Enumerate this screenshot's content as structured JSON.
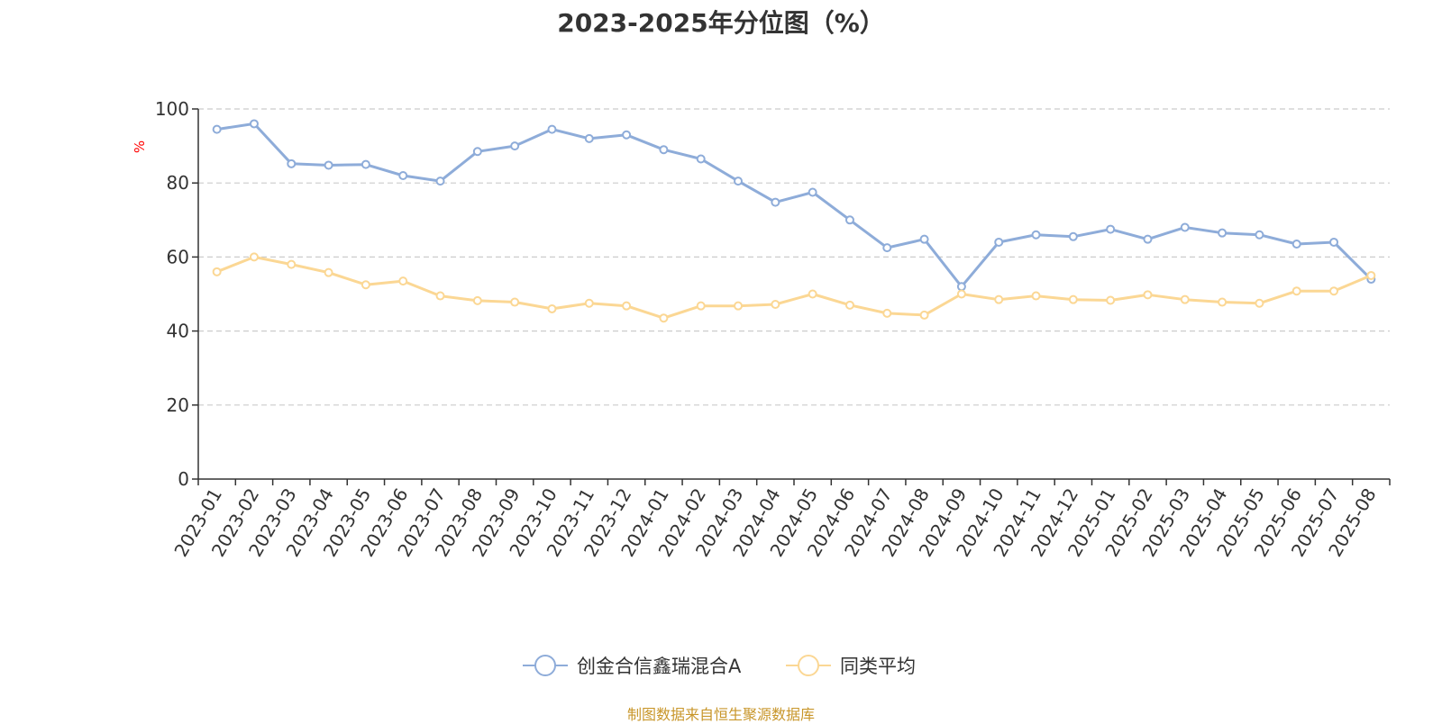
{
  "chart_data": {
    "type": "line",
    "title": "2023-2025年分位图（%）",
    "ylabel": "%",
    "xlabel": "",
    "ylim": [
      0,
      100
    ],
    "yticks": [
      0,
      20,
      40,
      60,
      80,
      100
    ],
    "grid": "horizontal dashed",
    "legend_position": "bottom-center",
    "categories": [
      "2023-01",
      "2023-02",
      "2023-03",
      "2023-04",
      "2023-05",
      "2023-06",
      "2023-07",
      "2023-08",
      "2023-09",
      "2023-10",
      "2023-11",
      "2023-12",
      "2024-01",
      "2024-02",
      "2024-03",
      "2024-04",
      "2024-05",
      "2024-06",
      "2024-07",
      "2024-08",
      "2024-09",
      "2024-10",
      "2024-11",
      "2024-12",
      "2025-01",
      "2025-02",
      "2025-03",
      "2025-04",
      "2025-05",
      "2025-06",
      "2025-07",
      "2025-08"
    ],
    "series": [
      {
        "name": "创金合信鑫瑞混合A",
        "color": "#8eacd9",
        "values": [
          94.5,
          96.0,
          85.2,
          84.8,
          85.0,
          82.0,
          80.5,
          88.5,
          90.0,
          94.5,
          92.0,
          93.0,
          89.0,
          86.5,
          80.5,
          74.8,
          77.5,
          70.0,
          62.5,
          64.8,
          52.0,
          64.0,
          66.0,
          65.5,
          67.5,
          64.8,
          68.0,
          66.5,
          66.0,
          63.5,
          64.0,
          54.0
        ]
      },
      {
        "name": "同类平均",
        "color": "#fbd794",
        "values": [
          56.0,
          60.0,
          58.0,
          55.8,
          52.5,
          53.5,
          49.5,
          48.2,
          47.8,
          46.0,
          47.5,
          46.8,
          43.5,
          46.8,
          46.8,
          47.2,
          50.0,
          47.0,
          44.8,
          44.3,
          50.0,
          48.5,
          49.5,
          48.5,
          48.3,
          49.8,
          48.5,
          47.8,
          47.5,
          50.8,
          50.8,
          55.0
        ]
      }
    ]
  },
  "footer": {
    "source": "制图数据来自恒生聚源数据库"
  }
}
